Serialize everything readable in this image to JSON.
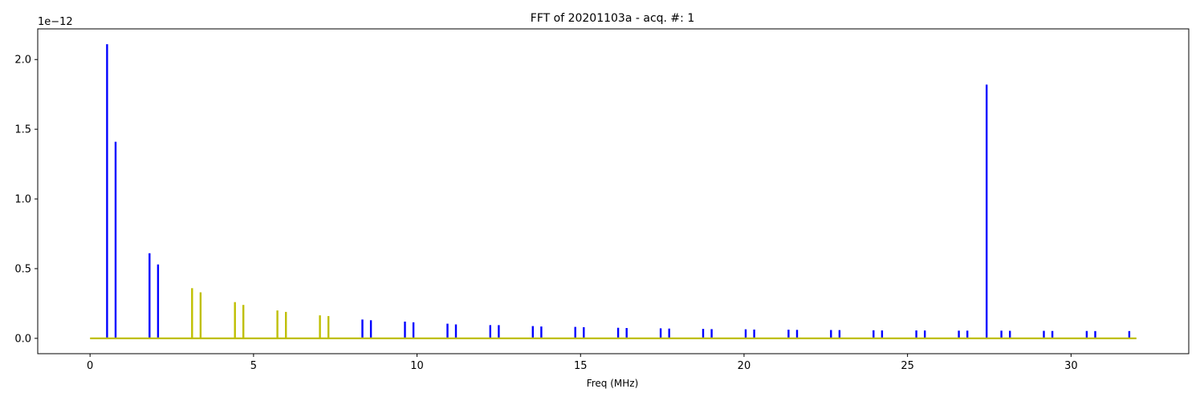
{
  "chart_data": {
    "type": "line",
    "title": "FFT of 20201103a - acq. #: 1",
    "xlabel": "Freq (MHz)",
    "ylabel": "",
    "y_exponent_label": "1e−12",
    "xlim": [
      -1.6,
      33.6
    ],
    "ylim": [
      -0.11,
      2.22
    ],
    "x_ticks": [
      0,
      5,
      10,
      15,
      20,
      25,
      30
    ],
    "y_ticks": [
      0.0,
      0.5,
      1.0,
      1.5,
      2.0
    ],
    "x_tick_labels": [
      "0",
      "5",
      "10",
      "15",
      "20",
      "25",
      "30"
    ],
    "y_tick_labels": [
      "0.0",
      "0.5",
      "1.0",
      "1.5",
      "2.0"
    ],
    "grid": false,
    "legend": "none",
    "baseline_range": [
      0,
      32
    ],
    "series": [
      {
        "color": "#0000ff",
        "peaks": [
          [
            0.52,
            2.11
          ],
          [
            0.78,
            1.41
          ],
          [
            1.82,
            0.61
          ],
          [
            2.08,
            0.53
          ],
          [
            8.33,
            0.135
          ],
          [
            8.59,
            0.13
          ],
          [
            9.63,
            0.12
          ],
          [
            9.89,
            0.115
          ],
          [
            10.93,
            0.105
          ],
          [
            11.19,
            0.1
          ],
          [
            12.24,
            0.095
          ],
          [
            12.5,
            0.095
          ],
          [
            13.54,
            0.088
          ],
          [
            13.8,
            0.085
          ],
          [
            14.84,
            0.082
          ],
          [
            15.1,
            0.08
          ],
          [
            16.15,
            0.076
          ],
          [
            16.41,
            0.074
          ],
          [
            17.45,
            0.072
          ],
          [
            17.71,
            0.07
          ],
          [
            18.75,
            0.068
          ],
          [
            19.01,
            0.066
          ],
          [
            20.05,
            0.065
          ],
          [
            20.31,
            0.063
          ],
          [
            21.36,
            0.062
          ],
          [
            21.62,
            0.061
          ],
          [
            22.66,
            0.06
          ],
          [
            22.92,
            0.059
          ],
          [
            23.96,
            0.058
          ],
          [
            24.22,
            0.057
          ],
          [
            25.27,
            0.057
          ],
          [
            25.53,
            0.056
          ],
          [
            26.57,
            0.055
          ],
          [
            26.83,
            0.055
          ],
          [
            27.42,
            1.82
          ],
          [
            27.87,
            0.055
          ],
          [
            28.13,
            0.054
          ],
          [
            29.17,
            0.054
          ],
          [
            29.43,
            0.053
          ],
          [
            30.48,
            0.053
          ],
          [
            30.74,
            0.052
          ],
          [
            31.78,
            0.052
          ]
        ]
      },
      {
        "color": "#bfbf00",
        "peaks": [
          [
            3.12,
            0.36
          ],
          [
            3.38,
            0.33
          ],
          [
            4.43,
            0.26
          ],
          [
            4.69,
            0.24
          ],
          [
            5.73,
            0.2
          ],
          [
            5.99,
            0.19
          ],
          [
            7.03,
            0.165
          ],
          [
            7.29,
            0.16
          ]
        ]
      }
    ]
  }
}
